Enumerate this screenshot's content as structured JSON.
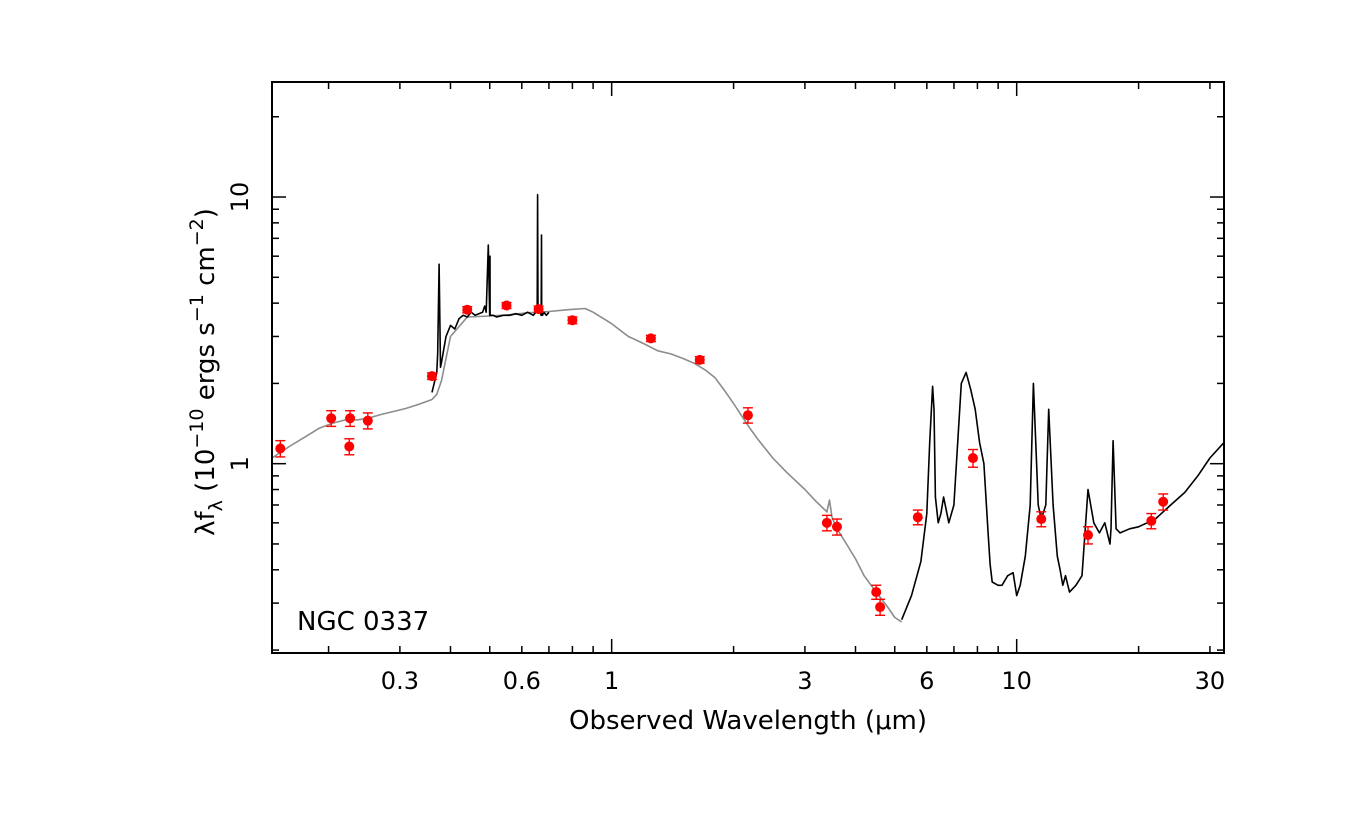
{
  "chart_data": {
    "type": "scatter",
    "xscale": "log",
    "yscale": "log",
    "xlim": [
      0.145,
      32.5
    ],
    "ylim": [
      0.195,
      27
    ],
    "xlabel": "Observed Wavelength (μm)",
    "ylabel_main": "λf",
    "ylabel_sub": "λ",
    "ylabel_unit_open": " (10",
    "ylabel_exp1": "−10",
    "ylabel_unit_mid": " ergs s",
    "ylabel_exp2": "−1",
    "ylabel_unit_mid2": " cm",
    "ylabel_exp3": "−2",
    "ylabel_unit_close": ")",
    "annotation": "NGC 0337",
    "x_ticks": [
      {
        "value": 0.3,
        "label": "0.3"
      },
      {
        "value": 0.6,
        "label": "0.6"
      },
      {
        "value": 1,
        "label": "1"
      },
      {
        "value": 3,
        "label": "3"
      },
      {
        "value": 6,
        "label": "6"
      },
      {
        "value": 10,
        "label": "10"
      },
      {
        "value": 30,
        "label": "30"
      }
    ],
    "y_ticks": [
      {
        "value": 1,
        "label": "1"
      },
      {
        "value": 10,
        "label": "10"
      }
    ],
    "colors": {
      "photometry": "#ff0000",
      "model": "#8c8c8c",
      "spectrum": "#000000"
    },
    "series": [
      {
        "kind": "model",
        "x": [
          0.145,
          0.16,
          0.175,
          0.19,
          0.205,
          0.22,
          0.235,
          0.25,
          0.27,
          0.29,
          0.31,
          0.33,
          0.345,
          0.36,
          0.37,
          0.38,
          0.4,
          0.44,
          0.5,
          0.56,
          0.62,
          0.7,
          0.78,
          0.86,
          0.9,
          1.0,
          1.1,
          1.2,
          1.3,
          1.4,
          1.5,
          1.6,
          1.7,
          1.8,
          1.9,
          2.0,
          2.1,
          2.2,
          2.3,
          2.5,
          2.7,
          3.0,
          3.2,
          3.4,
          3.45,
          3.5,
          3.6,
          3.8,
          4.0,
          4.2,
          4.5,
          4.8,
          5.0,
          5.2
        ],
        "y": [
          1.05,
          1.16,
          1.26,
          1.36,
          1.42,
          1.46,
          1.46,
          1.48,
          1.53,
          1.57,
          1.61,
          1.66,
          1.7,
          1.74,
          1.82,
          2.05,
          3.0,
          3.55,
          3.58,
          3.62,
          3.68,
          3.72,
          3.78,
          3.82,
          3.7,
          3.35,
          3.0,
          2.82,
          2.65,
          2.58,
          2.48,
          2.38,
          2.25,
          2.1,
          1.88,
          1.68,
          1.5,
          1.35,
          1.23,
          1.05,
          0.93,
          0.8,
          0.72,
          0.66,
          0.73,
          0.63,
          0.57,
          0.5,
          0.44,
          0.38,
          0.33,
          0.29,
          0.265,
          0.255
        ]
      },
      {
        "kind": "spectrum",
        "x": [
          0.36,
          0.37,
          0.372,
          0.375,
          0.378,
          0.38,
          0.39,
          0.4,
          0.41,
          0.42,
          0.43,
          0.44,
          0.45,
          0.46,
          0.48,
          0.486,
          0.49,
          0.496,
          0.5,
          0.5007,
          0.501,
          0.51,
          0.52,
          0.54,
          0.56,
          0.58,
          0.6,
          0.62,
          0.64,
          0.65,
          0.655,
          0.6563,
          0.658,
          0.66,
          0.67,
          0.671,
          0.672,
          0.673,
          0.675,
          0.68,
          0.69,
          0.7
        ],
        "y": [
          1.85,
          2.2,
          2.6,
          5.6,
          2.3,
          2.4,
          3.0,
          3.3,
          3.2,
          3.5,
          3.6,
          3.55,
          3.7,
          3.6,
          3.7,
          3.9,
          3.7,
          6.6,
          3.6,
          6.0,
          3.6,
          3.6,
          3.55,
          3.6,
          3.6,
          3.65,
          3.6,
          3.7,
          3.6,
          3.7,
          3.8,
          10.2,
          3.7,
          3.8,
          3.6,
          7.2,
          3.6,
          3.7,
          3.6,
          3.7,
          3.6,
          3.7
        ]
      },
      {
        "kind": "spectrum",
        "x": [
          5.2,
          5.5,
          5.8,
          6.0,
          6.1,
          6.2,
          6.25,
          6.3,
          6.4,
          6.5,
          6.6,
          6.8,
          7.0,
          7.3,
          7.5,
          7.7,
          7.9,
          8.1,
          8.3,
          8.5,
          8.6,
          8.7,
          9.0,
          9.2,
          9.5,
          9.8,
          10.0,
          10.2,
          10.5,
          10.8,
          11.0,
          11.2,
          11.3,
          11.5,
          11.8,
          12.0,
          12.3,
          12.6,
          12.8,
          13.0,
          13.2,
          13.5,
          14.0,
          14.5,
          15.0,
          15.5,
          16.0,
          16.5,
          17.0,
          17.1,
          17.3,
          17.6,
          18.0,
          19.0,
          20.0,
          21.0,
          22.0,
          23.0,
          24.0,
          26.0,
          28.0,
          30.0,
          32.5
        ],
        "y": [
          0.26,
          0.32,
          0.43,
          0.65,
          1.2,
          1.95,
          1.6,
          0.75,
          0.6,
          0.65,
          0.75,
          0.6,
          0.7,
          2.0,
          2.2,
          1.9,
          1.6,
          1.2,
          1.0,
          0.55,
          0.42,
          0.36,
          0.35,
          0.35,
          0.38,
          0.39,
          0.32,
          0.35,
          0.45,
          0.7,
          2.0,
          1.0,
          0.7,
          0.62,
          0.7,
          1.6,
          0.7,
          0.45,
          0.4,
          0.35,
          0.38,
          0.33,
          0.35,
          0.38,
          0.8,
          0.6,
          0.55,
          0.6,
          0.5,
          0.57,
          1.22,
          0.57,
          0.55,
          0.57,
          0.58,
          0.6,
          0.62,
          0.66,
          0.7,
          0.78,
          0.9,
          1.05,
          1.2
        ]
      },
      {
        "kind": "photometry",
        "x": [
          0.152,
          0.203,
          0.225,
          0.226,
          0.25,
          0.36,
          0.44,
          0.55,
          0.66,
          0.8,
          1.25,
          1.65,
          2.17,
          3.4,
          3.6,
          4.5,
          4.6,
          5.7,
          7.8,
          11.5,
          15.0,
          21.5,
          23.0
        ],
        "y": [
          1.14,
          1.48,
          1.16,
          1.48,
          1.45,
          2.13,
          3.78,
          3.92,
          3.8,
          3.45,
          2.95,
          2.45,
          1.52,
          0.6,
          0.58,
          0.33,
          0.29,
          0.63,
          1.05,
          0.62,
          0.54,
          0.61,
          0.72
        ],
        "err": [
          0.08,
          0.1,
          0.08,
          0.1,
          0.1,
          0.06,
          0.1,
          0.1,
          0.1,
          0.1,
          0.08,
          0.07,
          0.1,
          0.04,
          0.04,
          0.02,
          0.02,
          0.04,
          0.08,
          0.04,
          0.04,
          0.04,
          0.05
        ]
      }
    ]
  }
}
